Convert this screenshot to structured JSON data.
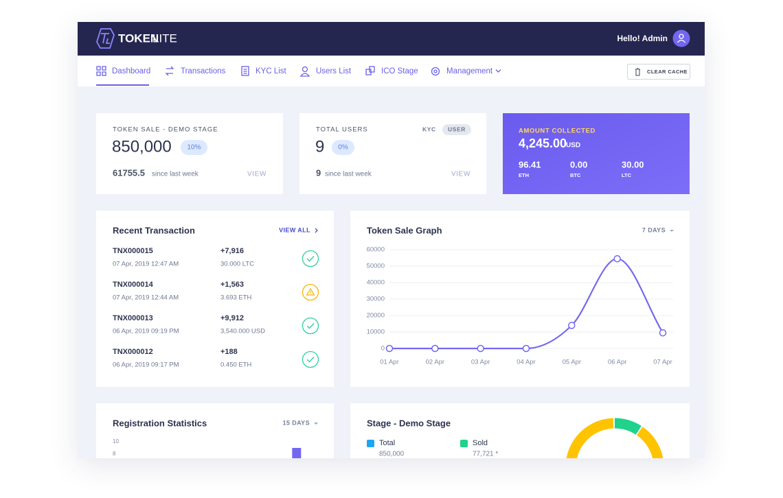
{
  "header": {
    "brand_bold": "TOKEN",
    "brand_light": "LITE",
    "greeting": "Hello! Admin"
  },
  "nav": {
    "items": [
      "Dashboard",
      "Transactions",
      "KYC List",
      "Users List",
      "ICO Stage",
      "Management"
    ],
    "button": "CLEAR CACHE"
  },
  "token_sale_card": {
    "label": "TOKEN SALE - DEMO STAGE",
    "value": "850,000",
    "badge": "10%",
    "sub_value": "61755.5",
    "sub_text": "since last week",
    "link": "VIEW"
  },
  "users_card": {
    "label": "TOTAL USERS",
    "tabs": [
      "KYC",
      "USER"
    ],
    "value": "9",
    "badge": "0%",
    "sub_value": "9",
    "sub_text": "since last week",
    "link": "VIEW"
  },
  "amount_card": {
    "label": "AMOUNT COLLECTED",
    "value": "4,245.00",
    "unit": "USD",
    "currencies": [
      {
        "value": "96.41",
        "label": "ETH"
      },
      {
        "value": "0.00",
        "label": "BTC"
      },
      {
        "value": "30.00",
        "label": "LTC"
      }
    ]
  },
  "transactions": {
    "title": "Recent Transaction",
    "link": "VIEW ALL",
    "rows": [
      {
        "id": "TNX000015",
        "date": "07 Apr, 2019 12:47 AM",
        "amount": "+7,916",
        "detail": "30.000 LTC"
      },
      {
        "id": "TNX000014",
        "date": "07 Apr, 2019 12:44 AM",
        "amount": "+1,563",
        "detail": "3.693 ETH"
      },
      {
        "id": "TNX000013",
        "date": "06 Apr, 2019 09:19 PM",
        "amount": "+9,912",
        "detail": "3,540.000 USD"
      },
      {
        "id": "TNX000012",
        "date": "06 Apr, 2019 09:17 PM",
        "amount": "+188",
        "detail": "0.450 ETH"
      }
    ]
  },
  "chart_data": [
    {
      "type": "line",
      "title": "Token Sale Graph",
      "range": "7 DAYS",
      "categories": [
        "01 Apr",
        "02 Apr",
        "03 Apr",
        "04 Apr",
        "05 Apr",
        "06 Apr",
        "07 Apr"
      ],
      "values": [
        0,
        0,
        0,
        0,
        14000,
        54500,
        9500
      ],
      "color": "#7367f0",
      "ylim": [
        0,
        60000
      ],
      "yticks": [
        0,
        10000,
        20000,
        30000,
        40000,
        50000,
        60000
      ],
      "grid": true
    },
    {
      "type": "bar",
      "title": "Registration Statistics",
      "range": "15 DAYS",
      "categories": [
        null,
        null,
        null,
        null,
        null,
        null,
        null,
        null,
        null,
        null,
        null,
        null,
        null,
        null,
        null
      ],
      "values": [
        0,
        0,
        0,
        0,
        0,
        0,
        0,
        0,
        0,
        0,
        0,
        0,
        0,
        9,
        0
      ],
      "color": "#7367f0",
      "ylim": [
        0,
        10
      ],
      "yticks": [
        8,
        10
      ]
    },
    {
      "type": "donut",
      "title": "Stage - Demo Stage",
      "categories": [
        "Total",
        "Sold"
      ],
      "values": [
        850000,
        77721
      ],
      "value_labels": [
        "850,000",
        "77,721 *"
      ],
      "colors": [
        "#1fa5f6",
        "#1fd38c"
      ],
      "remainder_color": "#ffc300"
    }
  ]
}
